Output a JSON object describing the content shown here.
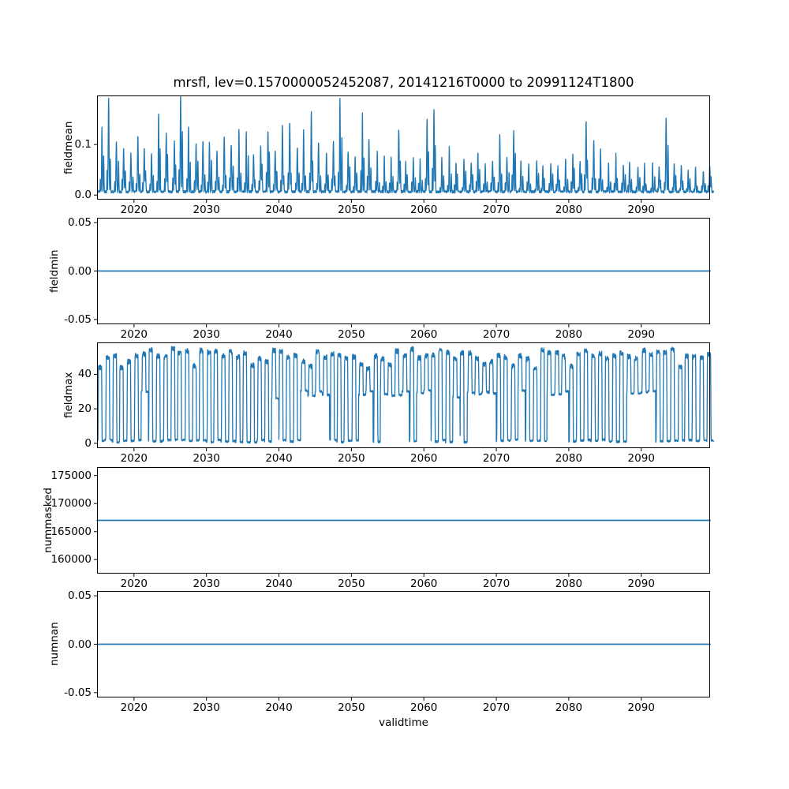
{
  "title": "mrsfl, lev=0.1570000052452087, 20141216T0000 to 20991124T1800",
  "line_color": "#1f77b4",
  "x_axis": {
    "label": "validtime",
    "xlim": [
      2014.9,
      2099.5
    ],
    "ticks": [
      2020,
      2030,
      2040,
      2050,
      2060,
      2070,
      2080,
      2090
    ]
  },
  "chart_data": [
    {
      "type": "line",
      "ylabel": "fieldmean",
      "ylim": [
        -0.009,
        0.197
      ],
      "yticks": [
        0.0,
        0.1
      ],
      "ytick_labels": [
        "0.0",
        "0.1"
      ],
      "series": [
        {
          "name": "fieldmean",
          "pattern": "annual_spikes",
          "seed": 12345,
          "baseline": 0.004,
          "years_start": 2015,
          "annual_peaks": [
            0.13,
            0.185,
            0.1,
            0.085,
            0.075,
            0.11,
            0.085,
            0.075,
            0.16,
            0.115,
            0.1,
            0.19,
            0.13,
            0.095,
            0.1,
            0.1,
            0.08,
            0.11,
            0.095,
            0.125,
            0.12,
            0.075,
            0.09,
            0.125,
            0.08,
            0.135,
            0.14,
            0.09,
            0.125,
            0.16,
            0.1,
            0.08,
            0.1,
            0.185,
            0.08,
            0.07,
            0.155,
            0.105,
            0.08,
            0.075,
            0.07,
            0.125,
            0.06,
            0.07,
            0.065,
            0.145,
            0.165,
            0.07,
            0.09,
            0.06,
            0.065,
            0.06,
            0.08,
            0.055,
            0.06,
            0.115,
            0.07,
            0.12,
            0.06,
            0.055,
            0.06,
            0.05,
            0.055,
            0.05,
            0.065,
            0.075,
            0.06,
            0.14,
            0.1,
            0.085,
            0.06,
            0.075,
            0.055,
            0.06,
            0.05,
            0.055,
            0.06,
            0.05,
            0.145,
            0.055,
            0.05,
            0.045,
            0.05,
            0.04,
            0.05
          ]
        }
      ]
    },
    {
      "type": "line",
      "ylabel": "fieldmin",
      "ylim": [
        -0.055,
        0.055
      ],
      "yticks": [
        -0.05,
        0.0,
        0.05
      ],
      "ytick_labels": [
        "-0.05",
        "0.00",
        "0.05"
      ],
      "series": [
        {
          "name": "fieldmin",
          "pattern": "constant",
          "value": 0.0
        }
      ]
    },
    {
      "type": "line",
      "ylabel": "fieldmax",
      "ylim": [
        -2.8,
        58.5
      ],
      "yticks": [
        0,
        20,
        40
      ],
      "ytick_labels": [
        "0",
        "20",
        "40"
      ],
      "series": [
        {
          "name": "fieldmax",
          "pattern": "annual_square",
          "seed": 777,
          "years_start": 2015,
          "years": 85,
          "high_base": 51,
          "high_jitter": 6,
          "low": 0,
          "mid": 28,
          "mid_years": [
            2043,
            2044,
            2045,
            2046,
            2054,
            2055,
            2056,
            2057,
            2060,
            2066,
            2067,
            2068,
            2069,
            2077,
            2078,
            2079,
            2088,
            2089,
            2090,
            2091
          ]
        }
      ]
    },
    {
      "type": "line",
      "ylabel": "nummasked",
      "ylim": [
        157500,
        176500
      ],
      "yticks": [
        160000,
        165000,
        170000,
        175000
      ],
      "ytick_labels": [
        "160000",
        "165000",
        "170000",
        "175000"
      ],
      "series": [
        {
          "name": "nummasked",
          "pattern": "constant",
          "value": 167000
        }
      ]
    },
    {
      "type": "line",
      "ylabel": "numnan",
      "ylim": [
        -0.055,
        0.055
      ],
      "yticks": [
        -0.05,
        0.0,
        0.05
      ],
      "ytick_labels": [
        "-0.05",
        "0.00",
        "0.05"
      ],
      "series": [
        {
          "name": "numnan",
          "pattern": "constant",
          "value": 0.0
        }
      ]
    }
  ]
}
